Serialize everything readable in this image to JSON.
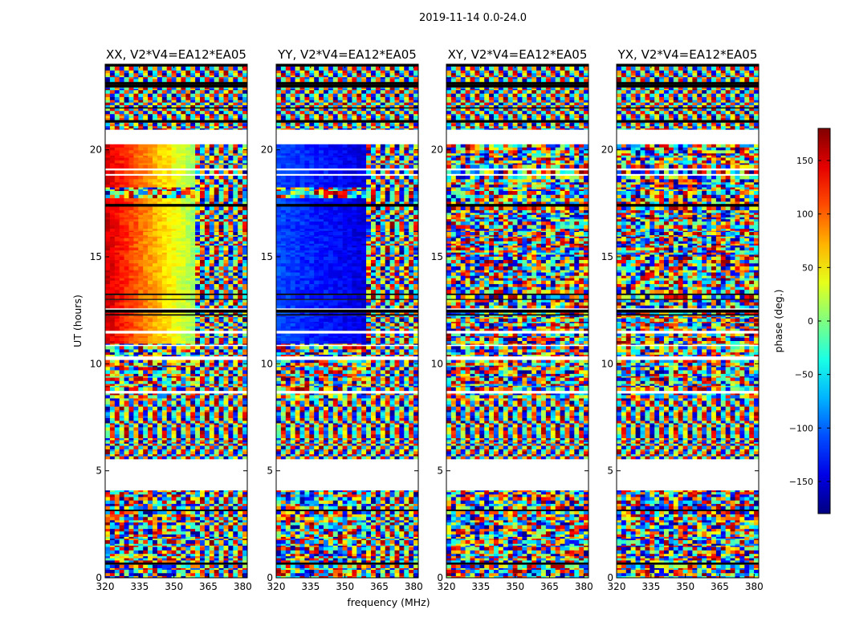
{
  "chart_data": {
    "type": "heatmap",
    "suptitle": "2019-11-14 0.0-24.0",
    "xlabel": "frequency (MHz)",
    "ylabel": "UT (hours)",
    "xlim": [
      320,
      382
    ],
    "ylim": [
      0,
      24
    ],
    "xticks": [
      320,
      335,
      350,
      365,
      380
    ],
    "yticks": [
      0,
      5,
      10,
      15,
      20
    ],
    "colorbar": {
      "label": "phase (deg.)",
      "range": [
        -180,
        180
      ],
      "ticks": [
        150,
        100,
        50,
        0,
        -50,
        -100,
        -150
      ],
      "tick_labels": [
        "150",
        "100",
        "50",
        "0",
        "−50",
        "−100",
        "−150"
      ],
      "colormap": "jet"
    },
    "panels": [
      {
        "title": "XX, V2*V4=EA12*EA05",
        "pattern": "xx"
      },
      {
        "title": "YY, V2*V4=EA12*EA05",
        "pattern": "yy"
      },
      {
        "title": "XY, V2*V4=EA12*EA05",
        "pattern": "cross"
      },
      {
        "title": "YX, V2*V4=EA12*EA05",
        "pattern": "cross"
      }
    ],
    "flagged_intervals_hours": [
      [
        4.05,
        5.55
      ],
      [
        18.95,
        19.05
      ],
      [
        20.25,
        20.95
      ]
    ]
  }
}
